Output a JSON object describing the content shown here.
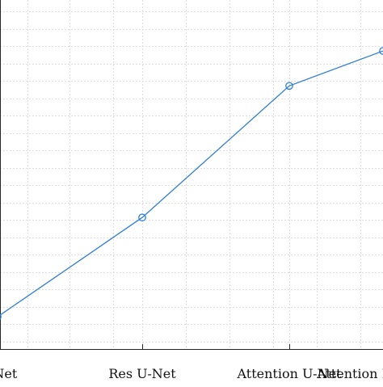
{
  "chart_data": {
    "type": "line",
    "categories": [
      "U-Net",
      "Res U-Net",
      "Attention U-Net",
      "Attention Res U-Net"
    ],
    "series": [
      {
        "values": [
          0.02,
          0.39,
          0.88,
          1.01
        ],
        "color": "#2f7ed8",
        "marker": "circle"
      }
    ],
    "ylim": [
      -0.1,
      1.2
    ],
    "grid": true,
    "grid_style": "dotted"
  }
}
